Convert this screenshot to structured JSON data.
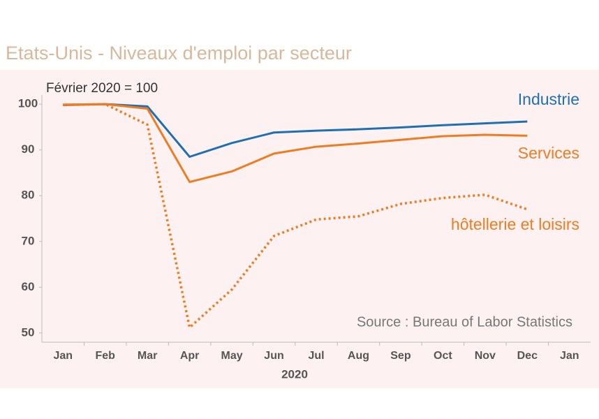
{
  "chart_data": {
    "type": "line",
    "title": "Etats-Unis - Niveaux d'emploi par secteur",
    "subtitle": "Février 2020 = 100",
    "annotation": "Source : Bureau of Labor Statistics",
    "xlabel": "2020",
    "categories": [
      "Jan",
      "Feb",
      "Mar",
      "Apr",
      "May",
      "Jun",
      "Jul",
      "Aug",
      "Sep",
      "Oct",
      "Nov",
      "Dec",
      "Jan"
    ],
    "series": [
      {
        "name": "Industrie",
        "color": "#1f6fb5",
        "dash": "solid",
        "values": [
          99.8,
          100,
          99.5,
          88.5,
          91.5,
          93.8,
          94.2,
          94.5,
          94.9,
          95.4,
          95.8,
          96.2,
          null
        ]
      },
      {
        "name": "Services",
        "color": "#f07c22",
        "dash": "solid",
        "values": [
          99.9,
          100,
          99,
          83,
          85.3,
          89.2,
          90.7,
          91.4,
          92.2,
          93,
          93.3,
          93.1,
          null
        ]
      },
      {
        "name": "hôtellerie et loisirs",
        "color": "#f07c22",
        "dash": "dotted",
        "values": [
          99.8,
          100,
          95.5,
          51.2,
          59.5,
          71.2,
          74.8,
          75.5,
          78.2,
          79.5,
          80.2,
          77,
          null
        ]
      }
    ],
    "ylim": [
      48,
      102
    ],
    "yticks": [
      50,
      60,
      70,
      80,
      90,
      100
    ],
    "grid": false
  }
}
